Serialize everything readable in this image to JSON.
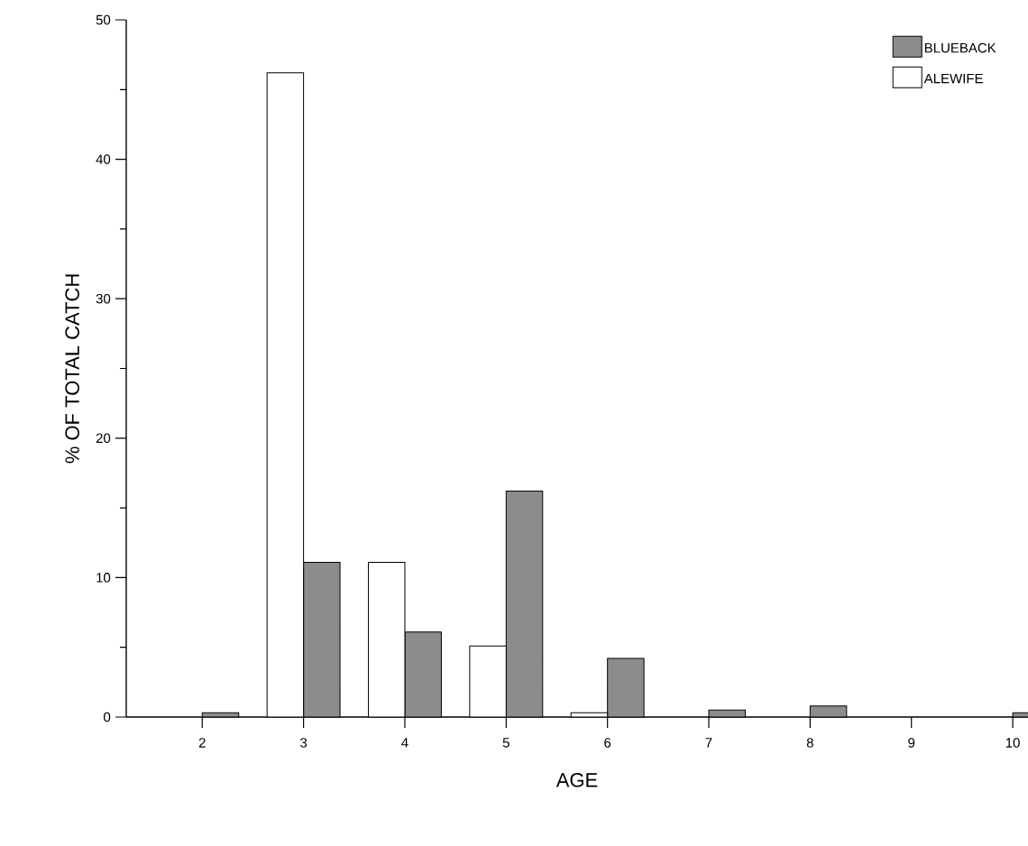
{
  "chart_data": {
    "type": "bar",
    "xlabel": "AGE",
    "ylabel": "% OF TOTAL CATCH",
    "categories": [
      "2",
      "3",
      "4",
      "5",
      "6",
      "7",
      "8",
      "9",
      "10"
    ],
    "series": [
      {
        "name": "BLUEBACK",
        "color": "#8c8c8c",
        "values": [
          0.3,
          11.1,
          6.1,
          16.2,
          4.2,
          0.5,
          0.8,
          null,
          0.3
        ]
      },
      {
        "name": "ALEWIFE",
        "color": "#ffffff",
        "values": [
          null,
          46.2,
          11.1,
          5.1,
          0.3,
          null,
          null,
          null,
          null
        ]
      }
    ],
    "ylim": [
      0,
      50
    ],
    "yticks": [
      0,
      10,
      20,
      30,
      40,
      50
    ],
    "legend": "top right",
    "grid": false
  }
}
